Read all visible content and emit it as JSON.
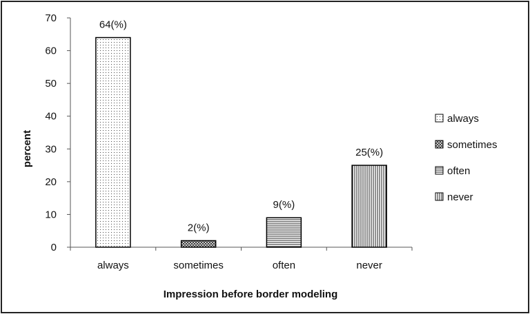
{
  "chart_data": {
    "type": "bar",
    "categories": [
      "always",
      "sometimes",
      "often",
      "never"
    ],
    "values": [
      64,
      2,
      9,
      25
    ],
    "data_labels": [
      "64(%)",
      "2(%)",
      "9(%)",
      "25(%)"
    ],
    "patterns": [
      "dots",
      "crosshatch",
      "horizontal-lines",
      "vertical-lines"
    ],
    "xlabel": "Impression before border modeling",
    "ylabel": "percent",
    "ylim": [
      0,
      70
    ],
    "yticks": [
      "0",
      "10",
      "20",
      "30",
      "40",
      "50",
      "60",
      "70"
    ],
    "legend": {
      "position": "right",
      "entries": [
        "always",
        "sometimes",
        "often",
        "never"
      ]
    },
    "grid": false,
    "colors": {
      "bar_fill": "#ffffff",
      "bar_stroke": "#000000",
      "pattern": "#333333"
    }
  }
}
